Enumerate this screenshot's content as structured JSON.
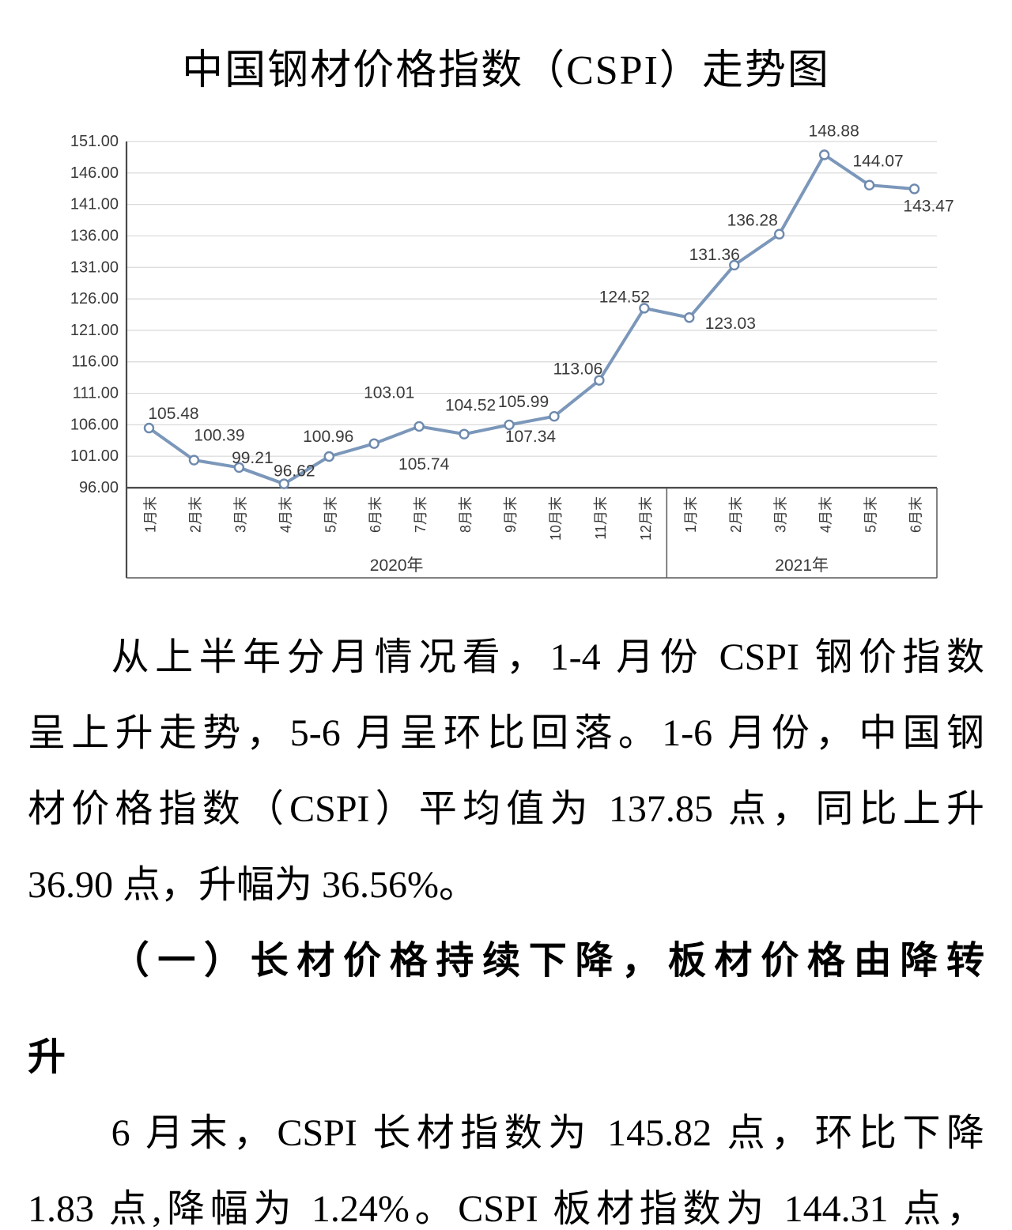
{
  "title": "中国钢材价格指数（CSPI）走势图",
  "chart_data": {
    "type": "line",
    "title": "中国钢材价格指数（CSPI）走势图",
    "legend": "none",
    "grid": true,
    "x_axis": {
      "categories": [
        "1月末",
        "2月末",
        "3月末",
        "4月末",
        "5月末",
        "6月末",
        "7月末",
        "8月末",
        "9月末",
        "10月末",
        "11月末",
        "12月末",
        "1月末",
        "2月末",
        "3月末",
        "4月末",
        "5月末",
        "6月末"
      ],
      "group_labels": [
        {
          "label": "2020年",
          "start": 0,
          "count": 12
        },
        {
          "label": "2021年",
          "start": 12,
          "count": 6
        }
      ]
    },
    "y_axis": {
      "min": 96,
      "max": 151,
      "step": 5,
      "tick_labels": [
        "151.00",
        "146.00",
        "141.00",
        "136.00",
        "131.00",
        "126.00",
        "121.00",
        "116.00",
        "111.00",
        "106.00",
        "101.00",
        "96.00"
      ]
    },
    "series": [
      {
        "name": "CSPI",
        "values": [
          105.48,
          100.39,
          99.21,
          96.62,
          100.96,
          103.01,
          105.74,
          104.52,
          105.99,
          107.34,
          113.06,
          124.52,
          123.03,
          131.36,
          136.28,
          148.88,
          144.07,
          143.47
        ],
        "data_labels": [
          "105.48",
          "100.39",
          "99.21",
          "96.62",
          "100.96",
          "103.01",
          "105.74",
          "104.52",
          "105.99",
          "107.34",
          "113.06",
          "124.52",
          "123.03",
          "131.36",
          "136.28",
          "148.88",
          "144.07",
          "143.47"
        ],
        "label_offsets": [
          [
            31,
            -18
          ],
          [
            32,
            -31
          ],
          [
            17,
            -12
          ],
          [
            13,
            -16
          ],
          [
            -1,
            -25
          ],
          [
            19,
            -64
          ],
          [
            6,
            48
          ],
          [
            8,
            -36
          ],
          [
            18,
            -29
          ],
          [
            -30,
            26
          ],
          [
            -27,
            -14
          ],
          [
            -25,
            -14
          ],
          [
            52,
            8
          ],
          [
            -25,
            -13
          ],
          [
            -34,
            -17
          ],
          [
            12,
            -30
          ],
          [
            11,
            -30
          ],
          [
            18,
            22
          ]
        ]
      }
    ],
    "colors": {
      "line": "#7b97ba",
      "marker_fill": "#ffffff",
      "marker_stroke": "#6d89ad",
      "grid": "#d9d9d9",
      "axis": "#4a4a4a",
      "box": "#595959",
      "label_text": "#3a3a3a"
    }
  },
  "body": {
    "p1": {
      "lines": [
        "从上半年分月情况看，1-4 月份 CSPI 钢价指数",
        "呈上升走势，5-6 月呈环比回落。1-6 月份，中国钢",
        "材价格指数（CSPI）平均值为 137.85 点，同比上升",
        "36.90 点，升幅为 36.56%。"
      ]
    },
    "heading": {
      "lines": [
        "（一）长材价格持续下降，板材价格由降转",
        "升"
      ]
    },
    "p2": {
      "lines": [
        "6 月末，CSPI 长材指数为 145.82 点，环比下降",
        "1.83 点,降幅为 1.24%。CSPI 板材指数为 144.31 点，"
      ]
    }
  }
}
